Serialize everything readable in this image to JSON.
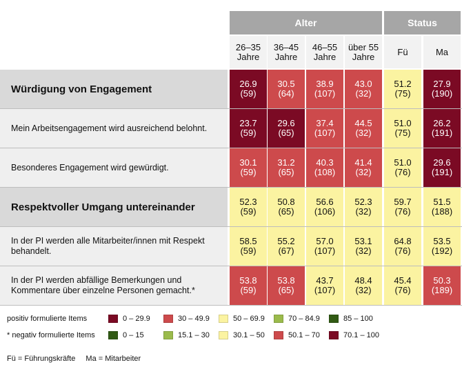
{
  "chart_data": {
    "type": "table",
    "column_groups": [
      {
        "label": "Alter",
        "span": 4
      },
      {
        "label": "Status",
        "span": 2
      }
    ],
    "columns": [
      "26–35\nJahre",
      "36–45\nJahre",
      "46–55\nJahre",
      "über 55\nJahre",
      "Fü",
      "Ma"
    ],
    "rows": [
      {
        "label": "Würdigung von Engagement",
        "kind": "section",
        "negative": false,
        "values": [
          26.9,
          30.5,
          38.9,
          43.0,
          51.2,
          27.9
        ],
        "n": [
          59,
          64,
          107,
          32,
          75,
          190
        ]
      },
      {
        "label": "Mein Arbeitsengagement wird ausreichend belohnt.",
        "kind": "item",
        "negative": false,
        "values": [
          23.7,
          29.6,
          37.4,
          44.5,
          51.0,
          26.2
        ],
        "n": [
          59,
          65,
          107,
          32,
          75,
          191
        ]
      },
      {
        "label": "Besonderes Engagement wird gewürdigt.",
        "kind": "item",
        "negative": false,
        "values": [
          30.1,
          31.2,
          40.3,
          41.4,
          51.0,
          29.6
        ],
        "n": [
          59,
          65,
          108,
          32,
          76,
          191
        ]
      },
      {
        "label": "Respektvoller Umgang untereinander",
        "kind": "section",
        "negative": false,
        "values": [
          52.3,
          50.8,
          56.6,
          52.3,
          59.7,
          51.5
        ],
        "n": [
          59,
          65,
          106,
          32,
          76,
          188
        ]
      },
      {
        "label": "In der PI werden alle Mitarbeiter/innen mit Respekt\nbehandelt.",
        "kind": "item",
        "negative": false,
        "values": [
          58.5,
          55.2,
          57.0,
          53.1,
          64.8,
          53.5
        ],
        "n": [
          59,
          67,
          107,
          32,
          76,
          192
        ]
      },
      {
        "label": "In der PI werden abfällige Bemerkungen und\nKommentare über einzelne Personen gemacht.*",
        "kind": "item",
        "negative": true,
        "values": [
          53.8,
          53.8,
          43.7,
          48.4,
          45.4,
          50.3
        ],
        "n": [
          59,
          65,
          107,
          32,
          76,
          189
        ]
      }
    ],
    "legend": {
      "positive": {
        "title": "positiv formulierte Items",
        "bins": [
          {
            "label": "0 – 29.9",
            "color": "#7b0a24"
          },
          {
            "label": "30 – 49.9",
            "color": "#cd4a4c"
          },
          {
            "label": "50 – 69.9",
            "color": "#fbf3a1"
          },
          {
            "label": "70 – 84.9",
            "color": "#9bbb4c"
          },
          {
            "label": "85 – 100",
            "color": "#315a14"
          }
        ],
        "thresholds": [
          30,
          50,
          70,
          85
        ]
      },
      "negative": {
        "title": "* negativ formulierte Items",
        "bins": [
          {
            "label": "0 – 15",
            "color": "#315a14"
          },
          {
            "label": "15.1 – 30",
            "color": "#9bbb4c"
          },
          {
            "label": "30.1 – 50",
            "color": "#fbf3a1"
          },
          {
            "label": "50.1 – 70",
            "color": "#cd4a4c"
          },
          {
            "label": "70.1 – 100",
            "color": "#7b0a24"
          }
        ],
        "thresholds": [
          15.05,
          30.05,
          50.05,
          70.05
        ]
      }
    },
    "footnote": [
      "Fü = Führungskräfte",
      "Ma = Mitarbeiter"
    ]
  }
}
